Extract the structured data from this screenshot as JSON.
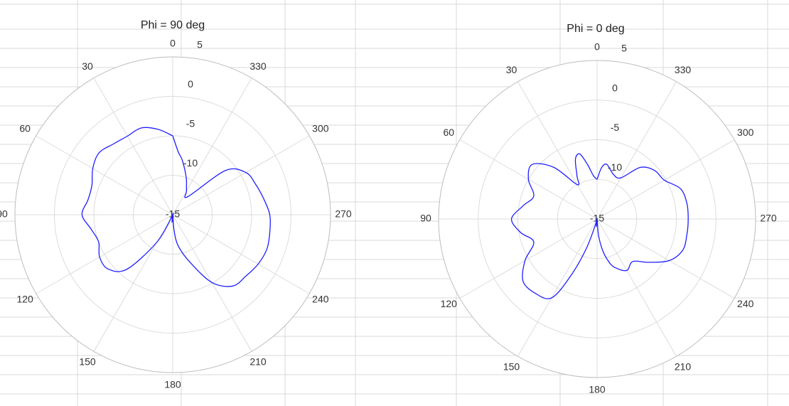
{
  "theme": {
    "sheet_grid_color": "#d9d9d9",
    "polar_grid_color": "#dcdcdc",
    "outer_ring_color": "#bdbdbd",
    "series_color": "#1f1fff",
    "text_color": "#333333"
  },
  "chart_data": [
    {
      "type": "line",
      "polar": true,
      "title": "Phi = 90 deg",
      "angle_direction": "counterclockwise",
      "zero_at": "top",
      "angle_ticks": [
        "0",
        "30",
        "60",
        "90",
        "120",
        "150",
        "180",
        "210",
        "240",
        "270",
        "300",
        "330"
      ],
      "radial_range": [
        -15,
        5
      ],
      "radial_ticks": [
        "5",
        "0",
        "-5",
        "-10",
        "-15"
      ],
      "grid": true,
      "series": [
        {
          "theta": [
            0,
            10,
            20,
            30,
            40,
            50,
            60,
            70,
            80,
            90,
            100,
            110,
            120,
            130,
            140,
            150,
            160,
            170,
            175,
            180,
            185,
            190,
            200,
            210,
            220,
            230,
            240,
            250,
            260,
            270,
            280,
            290,
            300,
            310,
            320,
            330,
            340,
            350,
            355,
            360
          ],
          "r": [
            -5,
            -4,
            -3.3,
            -3.5,
            -3.3,
            -2.8,
            -3.3,
            -4.1,
            -4.1,
            -3.5,
            -4.5,
            -5,
            -4.3,
            -4.3,
            -6,
            -11,
            -14.8,
            -15,
            -14,
            -15,
            -13,
            -11,
            -8.6,
            -5.1,
            -3.2,
            -2.9,
            -2.5,
            -2.3,
            -2.5,
            -2.7,
            -3.3,
            -3.8,
            -4.3,
            -6.3,
            -12,
            -11.5,
            -10,
            -8,
            -7,
            -5
          ]
        }
      ]
    },
    {
      "type": "line",
      "polar": true,
      "title": "Phi = 0 deg",
      "angle_direction": "counterclockwise",
      "zero_at": "top",
      "angle_ticks": [
        "0",
        "30",
        "60",
        "90",
        "120",
        "150",
        "180",
        "210",
        "240",
        "270",
        "300",
        "330"
      ],
      "radial_range": [
        -15,
        5
      ],
      "radial_ticks": [
        "5",
        "0",
        "-5",
        "-10",
        "-15"
      ],
      "grid": true,
      "series": [
        {
          "theta": [
            0,
            5,
            10,
            15,
            20,
            25,
            30,
            40,
            50,
            60,
            70,
            80,
            90,
            100,
            110,
            120,
            130,
            140,
            150,
            155,
            160,
            165,
            170,
            175,
            180,
            185,
            190,
            195,
            200,
            210,
            220,
            230,
            240,
            250,
            260,
            270,
            280,
            290,
            300,
            310,
            320,
            330,
            340,
            350,
            355,
            360
          ],
          "r": [
            -10,
            -9.5,
            -8,
            -6.5,
            -7,
            -9,
            -10,
            -6.5,
            -4.3,
            -5,
            -6.5,
            -5.5,
            -4.2,
            -5.2,
            -6.5,
            -4.5,
            -2.8,
            -2.8,
            -3.5,
            -7,
            -11,
            -14.5,
            -15,
            -14,
            -15,
            -13,
            -11,
            -9.5,
            -8.5,
            -7.5,
            -8,
            -6.5,
            -4.5,
            -3.5,
            -3.5,
            -3.5,
            -3.5,
            -3.8,
            -5.2,
            -5.5,
            -6.5,
            -9,
            -9,
            -8,
            -8.5,
            -10
          ]
        }
      ]
    }
  ]
}
